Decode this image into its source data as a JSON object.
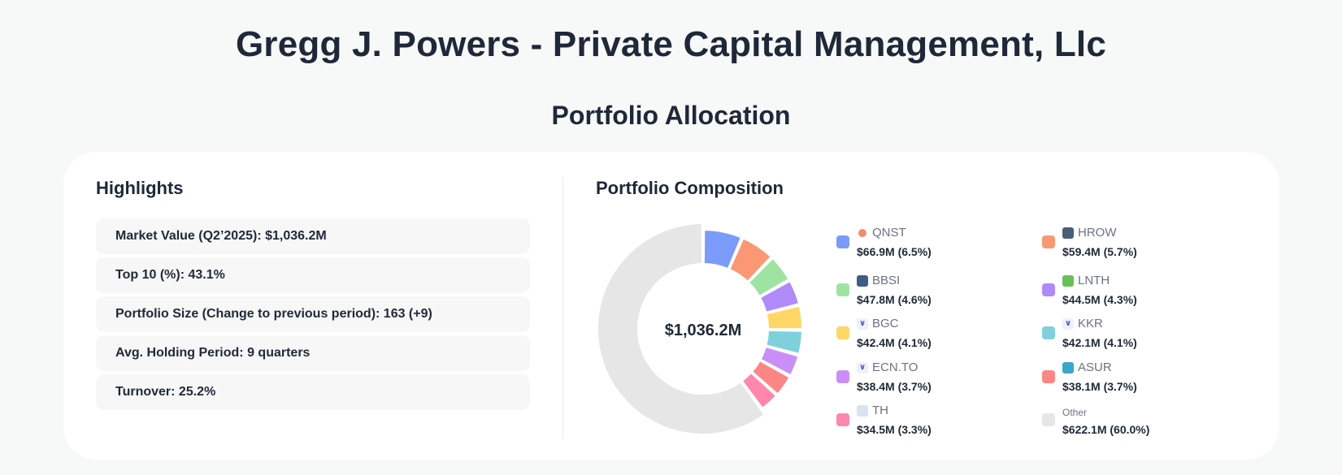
{
  "header": {
    "title": "Gregg J. Powers - Private Capital Management, Llc",
    "section": "Portfolio Allocation"
  },
  "highlights": {
    "title": "Highlights",
    "items": [
      "Market Value (Q2’2025): $1,036.2M",
      "Top 10 (%): 43.1%",
      "Portfolio Size (Change to previous period): 163 (+9)",
      "Avg. Holding Period: 9 quarters",
      "Turnover: 25.2%"
    ]
  },
  "composition": {
    "title": "Portfolio Composition",
    "center_label": "$1,036.2M"
  },
  "chart_data": {
    "type": "pie",
    "title": "Portfolio Composition",
    "total_label": "$1,036.2M",
    "slices": [
      {
        "name": "QNST",
        "label": "$66.9M (6.5%)",
        "value": 66.9,
        "percent": 6.5,
        "color": "#7b9bfa",
        "icon": "orange-dot-icon",
        "icon_color": "#f28c6b"
      },
      {
        "name": "HROW",
        "label": "$59.4M (5.7%)",
        "value": 59.4,
        "percent": 5.7,
        "color": "#fb9874",
        "icon": "h-logo-icon",
        "icon_color": "#4b5e79"
      },
      {
        "name": "BBSI",
        "label": "$47.8M (4.6%)",
        "value": 47.8,
        "percent": 4.6,
        "color": "#9fe3a3",
        "icon": "bbsi-logo-icon",
        "icon_color": "#3f5d85"
      },
      {
        "name": "LNTH",
        "label": "$44.5M (4.3%)",
        "value": 44.5,
        "percent": 4.3,
        "color": "#b08af9",
        "icon": "leaf-logo-icon",
        "icon_color": "#6bbf59"
      },
      {
        "name": "BGC",
        "label": "$42.4M (4.1%)",
        "value": 42.4,
        "percent": 4.1,
        "color": "#ffd766",
        "icon": "chevron-logo-icon",
        "icon_color": "#4756c9"
      },
      {
        "name": "KKR",
        "label": "$42.1M (4.1%)",
        "value": 42.1,
        "percent": 4.1,
        "color": "#7fd0dc",
        "icon": "chevron-logo-icon",
        "icon_color": "#4756c9"
      },
      {
        "name": "ECN.TO",
        "label": "$38.4M (3.7%)",
        "value": 38.4,
        "percent": 3.7,
        "color": "#c98ff7",
        "icon": "chevron-logo-icon",
        "icon_color": "#4756c9"
      },
      {
        "name": "ASUR",
        "label": "$38.1M (3.7%)",
        "value": 38.1,
        "percent": 3.7,
        "color": "#fb8686",
        "icon": "asur-logo-icon",
        "icon_color": "#3aa6c9"
      },
      {
        "name": "TH",
        "label": "$34.5M (3.3%)",
        "value": 34.5,
        "percent": 3.3,
        "color": "#fd86ab",
        "icon": "th-logo-icon",
        "icon_color": "#d8e3f0"
      },
      {
        "name": "Other",
        "label": "$622.1M (60.0%)",
        "value": 622.1,
        "percent": 60.0,
        "color": "#e6e6e6",
        "icon": "",
        "icon_color": ""
      }
    ]
  }
}
